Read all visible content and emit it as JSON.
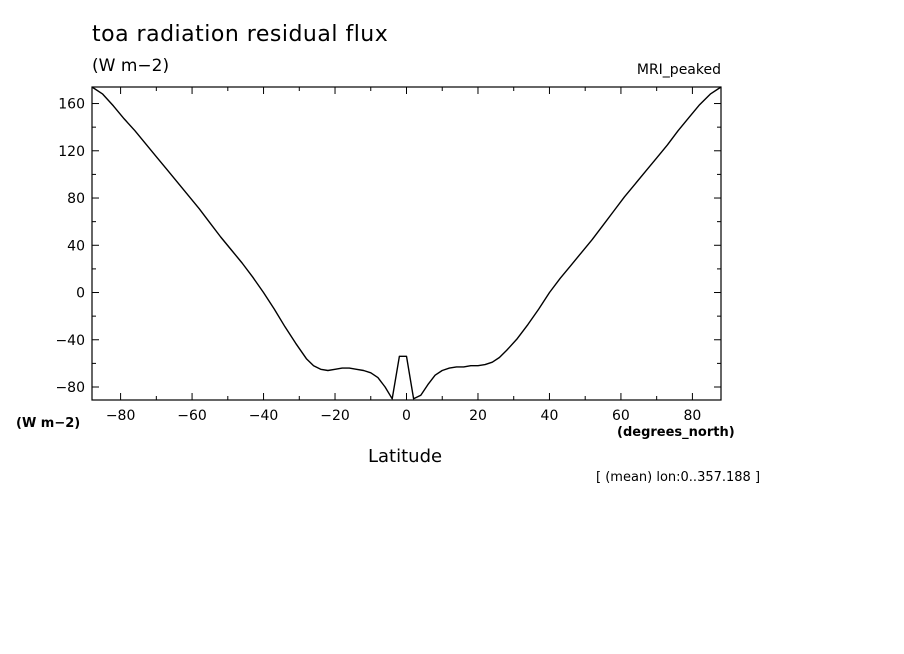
{
  "chart_data": {
    "type": "line",
    "title": "toa radiation residual flux",
    "units": "(W m−2)",
    "model_label": "MRI_peaked",
    "ylabel_unit": "(W m−2)",
    "xlabel_unit": "(degrees_north)",
    "xlabel": "Latitude",
    "footnote": "[ (mean) lon:0..357.188 ]",
    "xlim": [
      -88,
      88
    ],
    "ylim": [
      -91,
      174
    ],
    "xticks": [
      -80,
      -60,
      -40,
      -20,
      0,
      20,
      40,
      60,
      80
    ],
    "yticks": [
      -80,
      -40,
      0,
      40,
      80,
      120,
      160
    ],
    "grid": false,
    "series": [
      {
        "x": [
          -88,
          -85,
          -82,
          -79,
          -76,
          -73,
          -70,
          -67,
          -64,
          -61,
          -58,
          -55,
          -52,
          -49,
          -46,
          -43,
          -40,
          -37,
          -34,
          -31,
          -28,
          -26,
          -24,
          -22,
          -20,
          -18,
          -16,
          -14,
          -12,
          -10,
          -8,
          -6,
          -4,
          -2,
          0,
          2,
          4,
          6,
          8,
          10,
          12,
          14,
          16,
          18,
          20,
          22,
          24,
          26,
          28,
          31,
          34,
          37,
          40,
          43,
          46,
          49,
          52,
          55,
          58,
          61,
          64,
          67,
          70,
          73,
          76,
          79,
          82,
          85,
          88
        ],
        "y": [
          174,
          168,
          158,
          147,
          137,
          126,
          115,
          104,
          93,
          82,
          71,
          59,
          47,
          36,
          25,
          13,
          0,
          -14,
          -29,
          -43,
          -56,
          -62,
          -65,
          -66,
          -65,
          -64,
          -64,
          -65,
          -66,
          -68,
          -72,
          -80,
          -90,
          -54,
          -54,
          -90,
          -87,
          -78,
          -70,
          -66,
          -64,
          -63,
          -63,
          -62,
          -62,
          -61,
          -59,
          -55,
          -49,
          -39,
          -27,
          -14,
          0,
          12,
          23,
          34,
          45,
          57,
          69,
          81,
          92,
          103,
          114,
          125,
          137,
          148,
          159,
          168,
          174
        ]
      }
    ]
  }
}
